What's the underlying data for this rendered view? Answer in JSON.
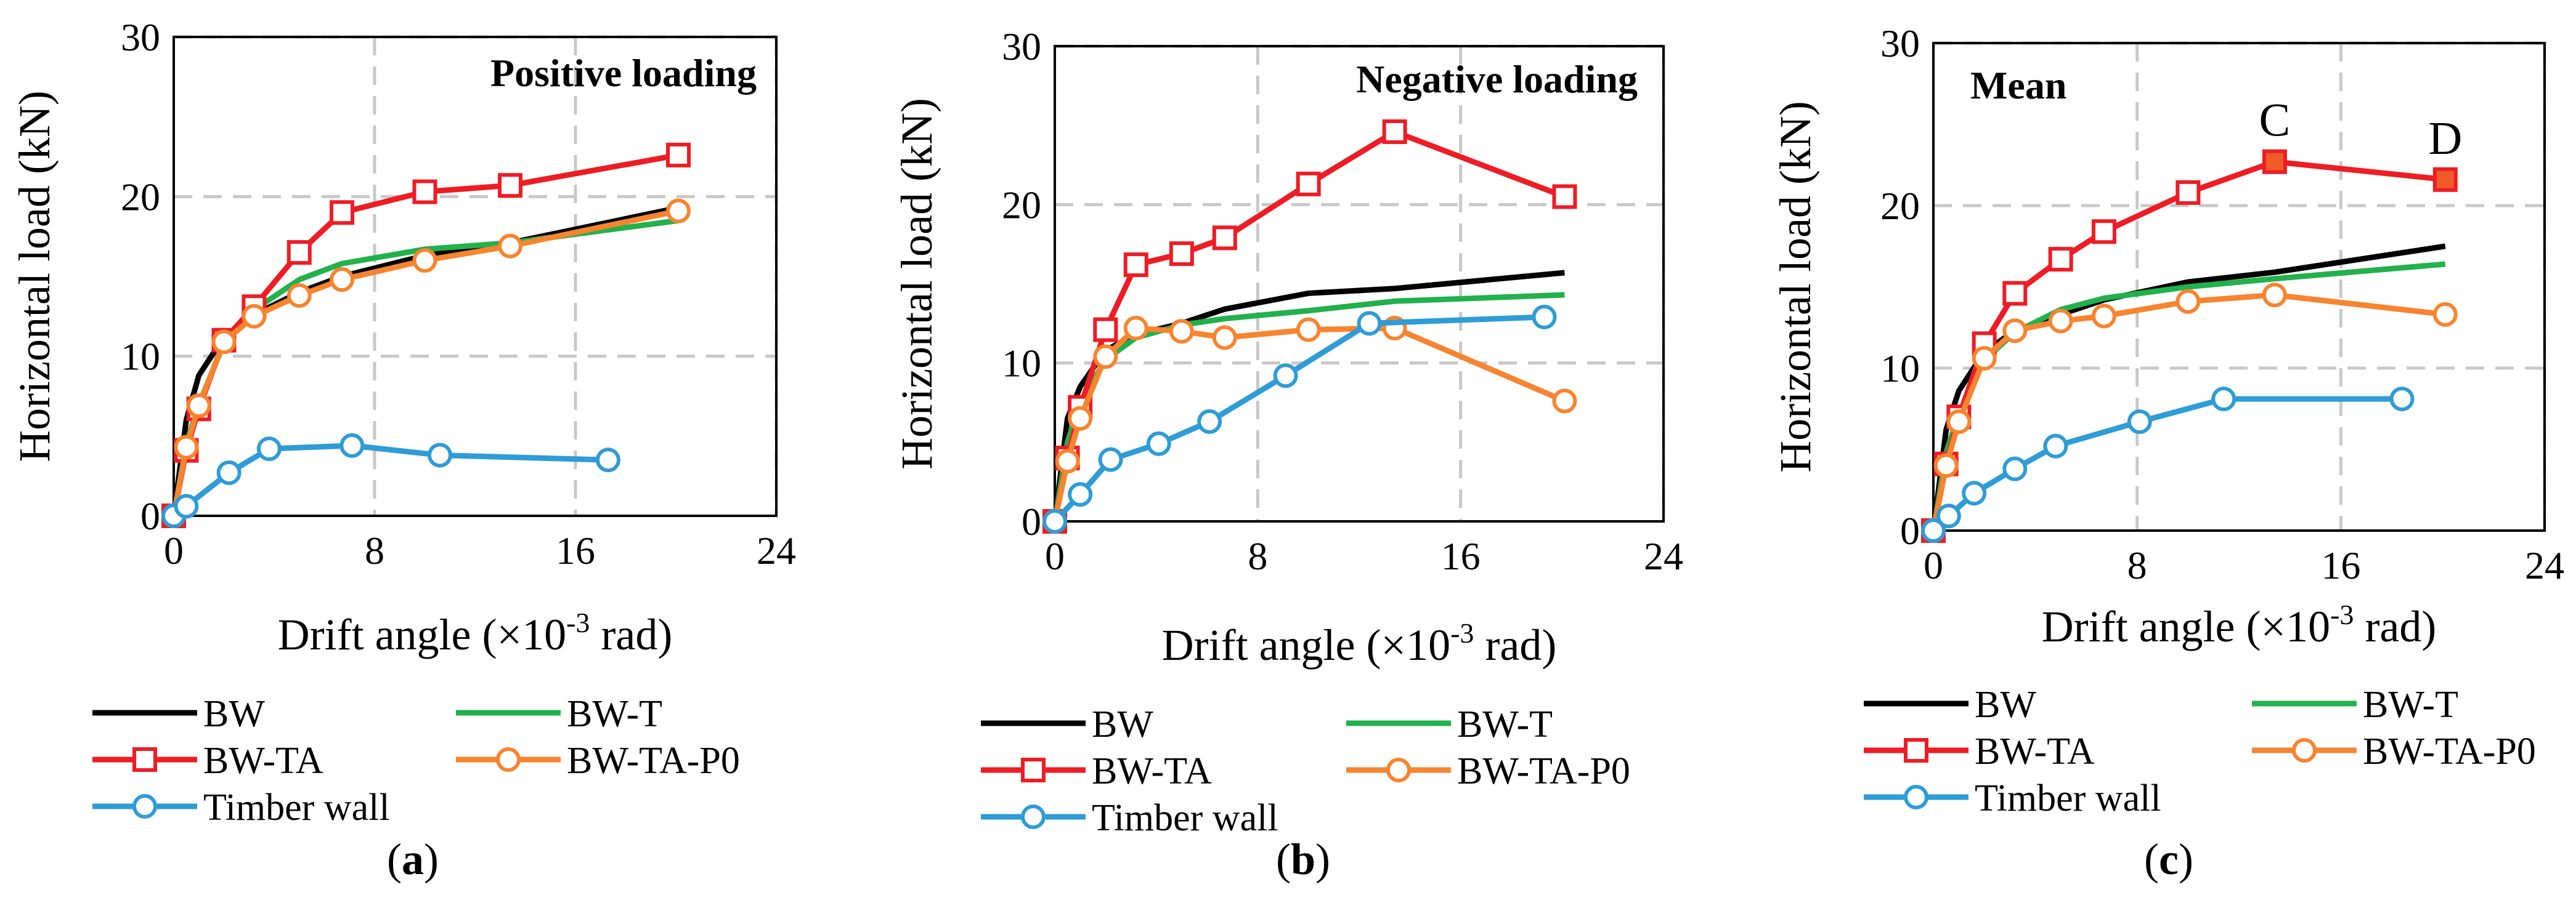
{
  "figure": {
    "panel_labels": [
      "(a)",
      "(b)",
      "(c)"
    ]
  },
  "colors": {
    "BW": "#000000",
    "BW-T": "#22b14c",
    "BW-TA": "#ee1c24",
    "BW-TA-P0": "#f7842f",
    "Timber wall": "#2e9cd6",
    "highlight_fill": "#f15a29",
    "grid": "#c8c8c8"
  },
  "chart_data": [
    {
      "type": "line",
      "title": "Positive loading",
      "panel_label": "(a)",
      "xlabel": "Drift angle (×10",
      "xlabel_sup": "-3",
      "xlabel_tail": " rad)",
      "ylabel": "Horizontal load (kN)",
      "xlim": [
        0,
        24
      ],
      "ylim": [
        0,
        30
      ],
      "xticks": [
        0,
        8,
        16,
        24
      ],
      "yticks": [
        0,
        10,
        20,
        30
      ],
      "grid": true,
      "legend_labels": [
        "BW",
        "BW-T",
        "BW-TA",
        "BW-TA-P0",
        "Timber wall"
      ],
      "series": [
        {
          "name": "BW",
          "marker": "none",
          "x": [
            0,
            0.5,
            1.0,
            2.0,
            3.2,
            5.0,
            6.7,
            10.0,
            13.4,
            20.1
          ],
          "y": [
            0,
            6.0,
            8.8,
            11.2,
            12.6,
            14.0,
            15.0,
            16.3,
            17.1,
            19.3
          ]
        },
        {
          "name": "BW-T",
          "marker": "none",
          "x": [
            0,
            0.5,
            1.0,
            2.0,
            3.2,
            5.0,
            6.7,
            10.0,
            13.4,
            20.1
          ],
          "y": [
            0,
            4.5,
            7.0,
            10.8,
            12.9,
            14.8,
            15.8,
            16.7,
            17.1,
            18.5
          ]
        },
        {
          "name": "BW-TA",
          "marker": "square",
          "x": [
            0,
            0.5,
            1.0,
            2.0,
            3.2,
            5.0,
            6.7,
            10.0,
            13.4,
            20.1
          ],
          "y": [
            0,
            4.1,
            6.7,
            11.0,
            13.1,
            16.5,
            19.0,
            20.3,
            20.7,
            22.6
          ]
        },
        {
          "name": "BW-TA-P0",
          "marker": "circle",
          "x": [
            0,
            0.5,
            1.0,
            2.0,
            3.2,
            5.0,
            6.7,
            10.0,
            13.4,
            20.1
          ],
          "y": [
            0,
            4.3,
            6.9,
            10.9,
            12.5,
            13.8,
            14.8,
            16.0,
            16.9,
            19.1
          ]
        },
        {
          "name": "Timber wall",
          "marker": "circle",
          "x": [
            0,
            0.5,
            2.2,
            3.8,
            7.1,
            10.6,
            17.3
          ],
          "y": [
            0,
            0.6,
            2.7,
            4.2,
            4.4,
            3.8,
            3.5
          ]
        }
      ]
    },
    {
      "type": "line",
      "title": "Negative loading",
      "panel_label": "(b)",
      "xlabel": "Drift angle (×10",
      "xlabel_sup": "-3",
      "xlabel_tail": " rad)",
      "ylabel": "Horizontal load (kN)",
      "xlim": [
        0,
        24
      ],
      "ylim": [
        0,
        30
      ],
      "xticks": [
        0,
        8,
        16,
        24
      ],
      "yticks": [
        0,
        10,
        20,
        30
      ],
      "grid": true,
      "legend_labels": [
        "BW",
        "BW-T",
        "BW-TA",
        "BW-TA-P0",
        "Timber wall"
      ],
      "series": [
        {
          "name": "BW",
          "marker": "none",
          "x": [
            0,
            0.5,
            1.0,
            2.0,
            3.2,
            5.0,
            6.7,
            10.0,
            13.4,
            20.1
          ],
          "y": [
            0,
            6.5,
            8.5,
            10.8,
            11.8,
            12.5,
            13.4,
            14.4,
            14.7,
            15.7
          ]
        },
        {
          "name": "BW-T",
          "marker": "none",
          "x": [
            0,
            0.5,
            1.0,
            2.0,
            3.2,
            5.0,
            6.7,
            10.0,
            13.4,
            20.1
          ],
          "y": [
            0,
            5.0,
            7.5,
            10.2,
            11.6,
            12.4,
            12.8,
            13.3,
            13.9,
            14.3
          ]
        },
        {
          "name": "BW-TA",
          "marker": "square",
          "x": [
            0,
            0.5,
            1.0,
            2.0,
            3.2,
            5.0,
            6.7,
            10.0,
            13.4,
            20.1
          ],
          "y": [
            0,
            4.0,
            7.2,
            12.1,
            16.2,
            16.9,
            17.9,
            21.3,
            24.6,
            20.5
          ]
        },
        {
          "name": "BW-TA-P0",
          "marker": "circle",
          "x": [
            0,
            0.5,
            1.0,
            2.0,
            3.2,
            5.0,
            6.7,
            10.0,
            13.4,
            20.1
          ],
          "y": [
            0,
            3.8,
            6.5,
            10.4,
            12.2,
            12.0,
            11.6,
            12.1,
            12.2,
            7.6
          ]
        },
        {
          "name": "Timber wall",
          "marker": "circle",
          "x": [
            0,
            1.0,
            2.2,
            4.1,
            6.1,
            9.1,
            12.4,
            19.3
          ],
          "y": [
            0,
            1.7,
            3.9,
            4.9,
            6.3,
            9.2,
            12.5,
            12.9
          ]
        }
      ]
    },
    {
      "type": "line",
      "title": "Mean",
      "panel_label": "(c)",
      "xlabel": "Drift angle (×10",
      "xlabel_sup": "-3",
      "xlabel_tail": " rad)",
      "ylabel": "Horizontal load (kN)",
      "xlim": [
        0,
        24
      ],
      "ylim": [
        0,
        30
      ],
      "xticks": [
        0,
        8,
        16,
        24
      ],
      "yticks": [
        0,
        10,
        20,
        30
      ],
      "grid": true,
      "legend_labels": [
        "BW",
        "BW-T",
        "BW-TA",
        "BW-TA-P0",
        "Timber  wall"
      ],
      "annotations": [
        {
          "text": "C",
          "x": 13.4,
          "y": 22.7
        },
        {
          "text": "D",
          "x": 20.1,
          "y": 21.6
        }
      ],
      "series": [
        {
          "name": "BW",
          "marker": "none",
          "x": [
            0,
            0.5,
            1.0,
            2.0,
            3.2,
            5.0,
            6.7,
            10.0,
            13.4,
            20.1
          ],
          "y": [
            0,
            6.2,
            8.6,
            11.0,
            12.3,
            13.3,
            14.2,
            15.3,
            15.9,
            17.5
          ]
        },
        {
          "name": "BW-T",
          "marker": "none",
          "x": [
            0,
            0.5,
            1.0,
            2.0,
            3.2,
            5.0,
            6.7,
            10.0,
            13.4,
            20.1
          ],
          "y": [
            0,
            4.8,
            7.2,
            10.5,
            12.2,
            13.6,
            14.3,
            15.0,
            15.5,
            16.4
          ]
        },
        {
          "name": "BW-TA",
          "marker": "square",
          "x": [
            0,
            0.5,
            1.0,
            2.0,
            3.2,
            5.0,
            6.7,
            10.0,
            13.4,
            20.1
          ],
          "y": [
            0,
            4.1,
            7.0,
            11.5,
            14.6,
            16.7,
            18.4,
            20.8,
            22.7,
            21.6
          ],
          "filled_points": [
            8,
            9
          ]
        },
        {
          "name": "BW-TA-P0",
          "marker": "circle",
          "x": [
            0,
            0.5,
            1.0,
            2.0,
            3.2,
            5.0,
            6.7,
            10.0,
            13.4,
            20.1
          ],
          "y": [
            0,
            4.0,
            6.7,
            10.6,
            12.3,
            12.9,
            13.2,
            14.1,
            14.5,
            13.3
          ]
        },
        {
          "name": "Timber wall",
          "marker": "circle",
          "x": [
            0,
            0.6,
            1.6,
            3.2,
            4.8,
            8.1,
            11.4,
            18.4
          ],
          "y": [
            0,
            0.9,
            2.3,
            3.8,
            5.2,
            6.7,
            8.1,
            8.1
          ]
        }
      ]
    }
  ]
}
